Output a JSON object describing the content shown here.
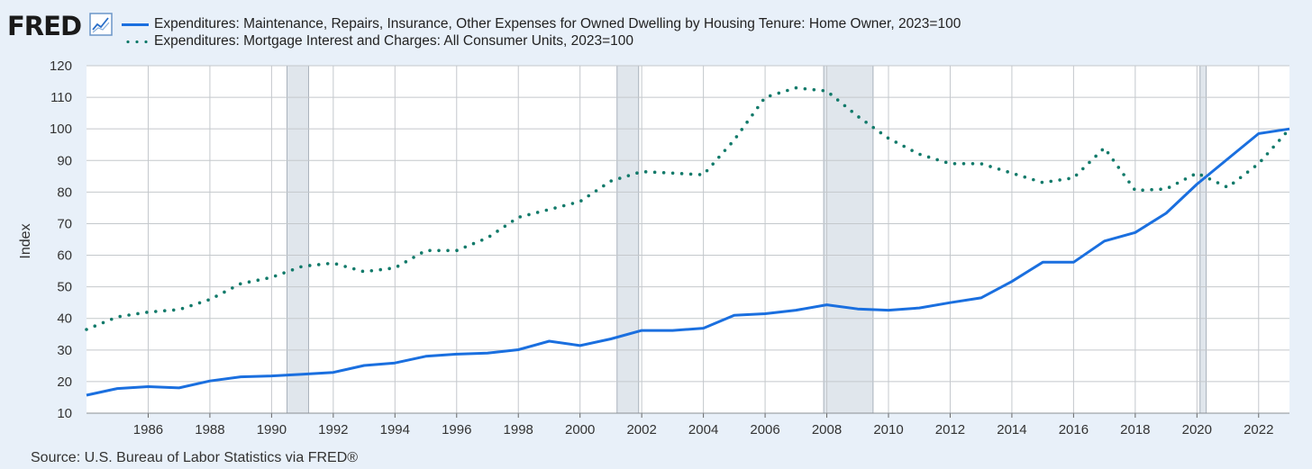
{
  "header": {
    "logo_text": "FRED",
    "logo_icon": "line-chart-icon"
  },
  "source": "Source: U.S. Bureau of Labor Statistics via FRED®",
  "chart_data": {
    "type": "line",
    "ylabel": "Index",
    "xlabel": "",
    "ylim": [
      10,
      120
    ],
    "xlim": [
      1984,
      2023
    ],
    "y_ticks": [
      10,
      20,
      30,
      40,
      50,
      60,
      70,
      80,
      90,
      100,
      110,
      120
    ],
    "x_ticks": [
      1986,
      1988,
      1990,
      1992,
      1994,
      1996,
      1998,
      2000,
      2002,
      2004,
      2006,
      2008,
      2010,
      2012,
      2014,
      2016,
      2018,
      2020,
      2022
    ],
    "grid": true,
    "legend_position": "top",
    "recessions": [
      [
        1990.5,
        1991.2
      ],
      [
        2001.2,
        2001.9
      ],
      [
        2007.9,
        2009.5
      ],
      [
        2020.1,
        2020.3
      ]
    ],
    "recession_color": "#e0e6ec",
    "series": [
      {
        "name": "Expenditures: Maintenance, Repairs, Insurance, Other Expenses for Owned Dwelling by Housing Tenure: Home Owner, 2023=100",
        "style": "solid",
        "color": "#1a6fdf",
        "x": [
          1984,
          1985,
          1986,
          1987,
          1988,
          1989,
          1990,
          1991,
          1992,
          1993,
          1994,
          1995,
          1996,
          1997,
          1998,
          1999,
          2000,
          2001,
          2002,
          2003,
          2004,
          2005,
          2006,
          2007,
          2008,
          2009,
          2010,
          2011,
          2012,
          2013,
          2014,
          2015,
          2016,
          2017,
          2018,
          2019,
          2020,
          2021,
          2022,
          2023
        ],
        "y": [
          15.7,
          17.8,
          18.4,
          18.0,
          20.2,
          21.5,
          21.8,
          22.3,
          22.9,
          25.1,
          25.9,
          28.0,
          28.7,
          29.0,
          30.1,
          32.8,
          31.4,
          33.5,
          36.2,
          36.2,
          36.9,
          41.0,
          41.5,
          42.6,
          44.3,
          43.0,
          42.6,
          43.3,
          45.0,
          46.5,
          51.7,
          57.8,
          57.8,
          64.5,
          67.2,
          73.3,
          82.5,
          90.5,
          98.5,
          100.0
        ]
      },
      {
        "name": "Expenditures: Mortgage Interest and Charges: All Consumer Units, 2023=100",
        "style": "dotted",
        "color": "#127a6a",
        "x": [
          1984,
          1985,
          1986,
          1987,
          1988,
          1989,
          1990,
          1991,
          1992,
          1993,
          1994,
          1995,
          1996,
          1997,
          1998,
          1999,
          2000,
          2001,
          2002,
          2003,
          2004,
          2005,
          2006,
          2007,
          2008,
          2009,
          2010,
          2011,
          2012,
          2013,
          2014,
          2015,
          2016,
          2017,
          2018,
          2019,
          2020,
          2021,
          2022,
          2023
        ],
        "y": [
          36.5,
          40.5,
          42.0,
          42.8,
          46.0,
          51.0,
          53.0,
          56.5,
          57.5,
          54.8,
          56.0,
          61.5,
          61.5,
          65.5,
          72.0,
          74.5,
          77.0,
          83.5,
          86.5,
          86.0,
          85.5,
          96.5,
          110.0,
          113.0,
          112.0,
          104.0,
          97.0,
          92.0,
          89.0,
          89.0,
          86.0,
          83.0,
          84.5,
          94.0,
          80.5,
          81.0,
          86.0,
          81.5,
          89.0,
          100.0
        ]
      }
    ]
  }
}
